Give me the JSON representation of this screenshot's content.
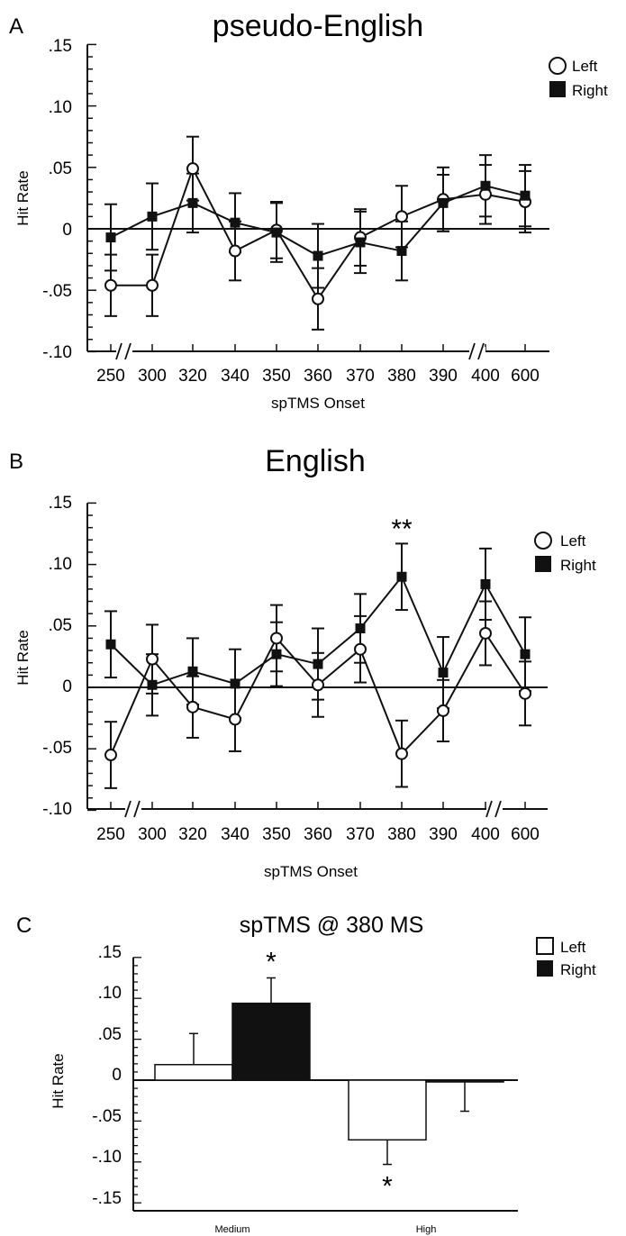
{
  "figure": {
    "panels": [
      {
        "letter": "A",
        "title": "pseudo-English",
        "ylabel": "Hit Rate",
        "xlabel": "spTMS Onset",
        "yticks": [
          ".15",
          ".10",
          ".05",
          "0",
          "-.05",
          "-.10"
        ],
        "legend": [
          {
            "label": "Left",
            "marker": "open-circle"
          },
          {
            "label": "Right",
            "marker": "filled-square"
          }
        ],
        "annotation": ""
      },
      {
        "letter": "B",
        "title": "English",
        "ylabel": "Hit Rate",
        "xlabel": "spTMS Onset",
        "yticks": [
          ".15",
          ".10",
          ".05",
          "0",
          "-.05",
          "-.10"
        ],
        "legend": [
          {
            "label": "Left",
            "marker": "open-circle"
          },
          {
            "label": "Right",
            "marker": "filled-square"
          }
        ],
        "annotation": "**"
      },
      {
        "letter": "C",
        "title": "spTMS @ 380 MS",
        "ylabel": "Hit Rate",
        "xlabel": "",
        "yticks": [
          ".15",
          ".10",
          ".05",
          "0",
          "-.05",
          "-.10",
          "-.15"
        ],
        "legend": [
          {
            "label": "Left",
            "marker": "open-box"
          },
          {
            "label": "Right",
            "marker": "filled-box"
          }
        ],
        "annotation": "*"
      }
    ]
  },
  "chart_data": [
    {
      "type": "line",
      "title": "pseudo-English",
      "xlabel": "spTMS Onset",
      "ylabel": "Hit Rate",
      "categories": [
        "250",
        "300",
        "320",
        "340",
        "350",
        "360",
        "370",
        "380",
        "390",
        "400",
        "600"
      ],
      "ylim": [
        -0.1,
        0.15
      ],
      "axis_breaks": [
        "250-300",
        "400-600"
      ],
      "legend_position": "top-right",
      "series": [
        {
          "name": "Left",
          "marker": "open-circle",
          "values": [
            -0.046,
            -0.046,
            0.049,
            -0.018,
            -0.001,
            -0.057,
            -0.007,
            0.01,
            0.024,
            0.028,
            0.022
          ],
          "errors": [
            0.025,
            0.025,
            0.026,
            0.024,
            0.023,
            0.025,
            0.023,
            0.025,
            0.026,
            0.024,
            0.025
          ]
        },
        {
          "name": "Right",
          "marker": "filled-square",
          "values": [
            -0.007,
            0.01,
            0.021,
            0.005,
            -0.003,
            -0.022,
            -0.011,
            -0.018,
            0.021,
            0.035,
            0.027
          ],
          "errors": [
            0.027,
            0.027,
            0.024,
            0.024,
            0.024,
            0.026,
            0.025,
            0.024,
            0.023,
            0.025,
            0.025
          ]
        }
      ]
    },
    {
      "type": "line",
      "title": "English",
      "xlabel": "spTMS Onset",
      "ylabel": "Hit Rate",
      "categories": [
        "250",
        "300",
        "320",
        "340",
        "350",
        "360",
        "370",
        "380",
        "390",
        "400",
        "600"
      ],
      "ylim": [
        -0.1,
        0.15
      ],
      "axis_breaks": [
        "250-300",
        "400-600"
      ],
      "legend_position": "top-right",
      "annotations": [
        {
          "category": "380",
          "text": "**"
        }
      ],
      "series": [
        {
          "name": "Left",
          "marker": "open-circle",
          "values": [
            -0.055,
            0.023,
            -0.016,
            -0.026,
            0.04,
            0.002,
            0.031,
            -0.054,
            -0.019,
            0.044,
            -0.005
          ],
          "errors": [
            0.027,
            0.028,
            0.025,
            0.026,
            0.027,
            0.026,
            0.027,
            0.027,
            0.025,
            0.026,
            0.026
          ]
        },
        {
          "name": "Right",
          "marker": "filled-square",
          "values": [
            0.035,
            0.002,
            0.013,
            0.003,
            0.027,
            0.019,
            0.048,
            0.09,
            0.012,
            0.084,
            0.027
          ],
          "errors": [
            0.027,
            0.025,
            0.027,
            0.028,
            0.026,
            0.029,
            0.028,
            0.027,
            0.029,
            0.029,
            0.03
          ]
        }
      ]
    },
    {
      "type": "bar",
      "title": "spTMS @ 380 MS",
      "xlabel": "",
      "ylabel": "Hit Rate",
      "categories": [
        "Medium",
        "High"
      ],
      "ylim": [
        -0.15,
        0.15
      ],
      "legend_position": "top-right",
      "series": [
        {
          "name": "Left",
          "values": [
            0.019,
            -0.073
          ],
          "errors": [
            0.038,
            0.03
          ]
        },
        {
          "name": "Right",
          "values": [
            0.094,
            -0.001
          ],
          "errors": [
            0.031,
            0.037
          ]
        }
      ],
      "annotations": [
        {
          "category": "Medium",
          "series": "Right",
          "text": "*"
        },
        {
          "category": "High",
          "series": "Left",
          "text": "*"
        }
      ]
    }
  ]
}
